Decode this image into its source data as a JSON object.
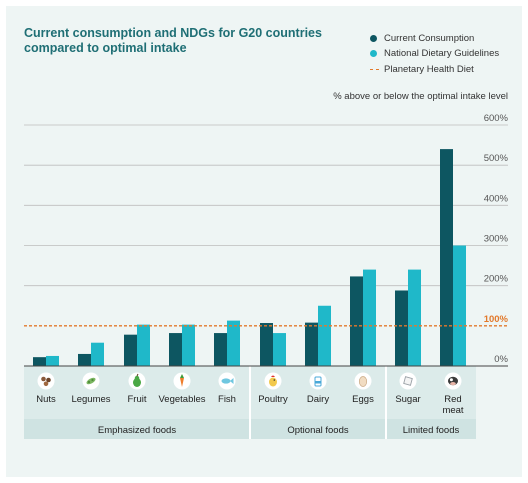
{
  "chart_data": {
    "type": "bar",
    "title": "Current consumption and NDGs for G20 countries compared to optimal intake",
    "ylabel": "% above or below the optimal intake level",
    "ylim": [
      0,
      600
    ],
    "yticks": [
      "0%",
      "100%",
      "200%",
      "300%",
      "400%",
      "500%",
      "600%"
    ],
    "grid": true,
    "legend_position": "top-right",
    "categories": [
      "Nuts",
      "Legumes",
      "Fruit",
      "Vegetables",
      "Fish",
      "Poultry",
      "Dairy",
      "Eggs",
      "Sugar",
      "Red meat"
    ],
    "category_icons": [
      "nuts-icon",
      "legumes-icon",
      "pear-icon",
      "carrot-icon",
      "fish-icon",
      "chicken-icon",
      "milk-icon",
      "egg-icon",
      "sugar-icon",
      "cow-icon"
    ],
    "series": [
      {
        "name": "Current Consumption",
        "color": "#0d5661",
        "values": [
          22,
          30,
          78,
          82,
          82,
          107,
          108,
          223,
          188,
          540
        ]
      },
      {
        "name": "National Dietary Guidelines",
        "color": "#1fb8c9",
        "values": [
          25,
          58,
          103,
          103,
          113,
          82,
          150,
          240,
          240,
          300
        ]
      }
    ],
    "reference_line": {
      "name": "Planetary Health Diet",
      "value": 100,
      "label": "100%",
      "color": "#e2792b"
    },
    "groups": [
      {
        "label": "Emphasized foods",
        "start": 0,
        "end": 4
      },
      {
        "label": "Optional foods",
        "start": 5,
        "end": 7
      },
      {
        "label": "Limited foods",
        "start": 8,
        "end": 9
      }
    ]
  }
}
